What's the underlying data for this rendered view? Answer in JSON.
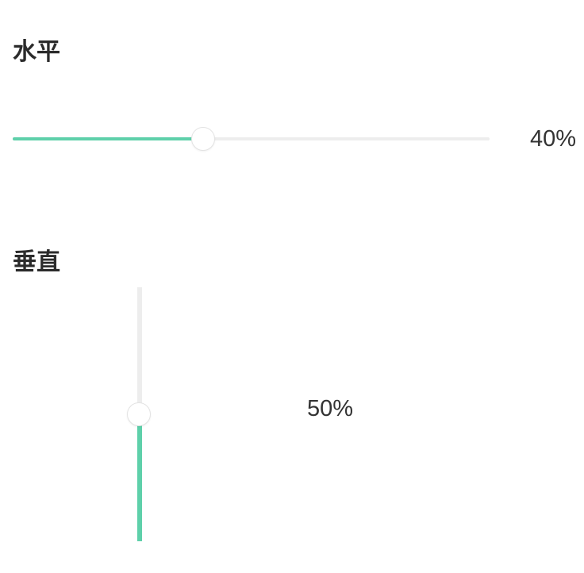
{
  "accent_color": "#5ed0aa",
  "track_color": "#ededed",
  "horizontal": {
    "title": "水平",
    "value_percent": 40,
    "value_label": "40%"
  },
  "vertical": {
    "title": "垂直",
    "value_percent": 50,
    "value_label": "50%"
  }
}
